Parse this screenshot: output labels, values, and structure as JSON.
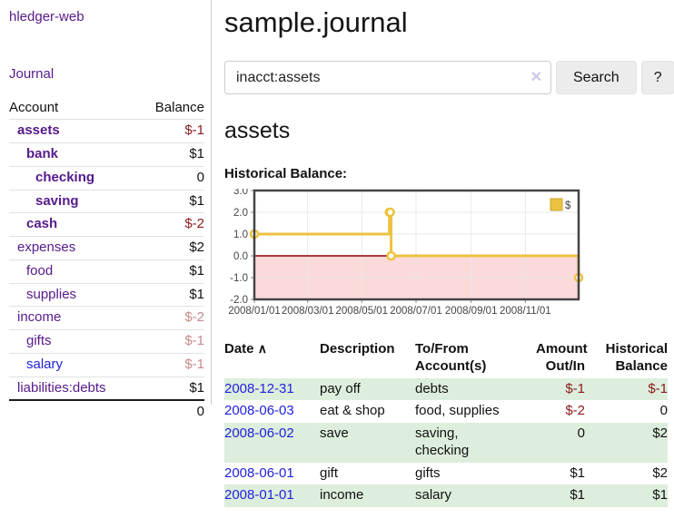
{
  "app": {
    "brand": "hledger-web",
    "nav_journal": "Journal"
  },
  "colors": {
    "link_purple": "#551a8b",
    "link_blue": "#2222dd",
    "negative_strong": "#8b1a1a",
    "negative_muted": "#c98b8b",
    "row_green": "#ddeedd",
    "chart_line": "#edc240",
    "chart_negative_bg": "#fcdada",
    "chart_zero_line": "#8b0000",
    "chart_grid": "#e8e8e8",
    "chart_border": "#454545"
  },
  "sidebar": {
    "accounts_header": {
      "account": "Account",
      "balance": "Balance"
    },
    "accounts": [
      {
        "name": "assets",
        "depth": 1,
        "bold": true,
        "balance": "$-1",
        "negative": true
      },
      {
        "name": "bank",
        "depth": 2,
        "bold": true,
        "balance": "$1"
      },
      {
        "name": "checking",
        "depth": 3,
        "bold": true,
        "balance": "0"
      },
      {
        "name": "saving",
        "depth": 3,
        "bold": true,
        "balance": "$1"
      },
      {
        "name": "cash",
        "depth": 2,
        "bold": true,
        "balance": "$-2",
        "negative": true
      },
      {
        "name": "expenses",
        "depth": 1,
        "bold": false,
        "balance": "$2"
      },
      {
        "name": "food",
        "depth": 2,
        "bold": false,
        "balance": "$1"
      },
      {
        "name": "supplies",
        "depth": 2,
        "bold": false,
        "balance": "$1"
      },
      {
        "name": "income",
        "depth": 1,
        "bold": false,
        "balance": "$-2",
        "muted": true
      },
      {
        "name": "gifts",
        "depth": 2,
        "bold": false,
        "balance": "$-1",
        "muted": true
      },
      {
        "name": "salary",
        "depth": 2,
        "bold": false,
        "balance": "$-1",
        "muted": true,
        "blue": true
      },
      {
        "name": "liabilities:debts",
        "depth": 1,
        "bold": false,
        "balance": "$1"
      }
    ],
    "total": "0"
  },
  "header": {
    "title": "sample.journal"
  },
  "search": {
    "query": "inacct:assets",
    "clear_icon": "✕",
    "button": "Search",
    "help_button": "?"
  },
  "account_page": {
    "title": "assets",
    "chart_label": "Historical Balance:"
  },
  "chart_data": {
    "type": "line",
    "step": true,
    "title": "Historical Balance:",
    "series": [
      {
        "name": "$",
        "points": [
          [
            "2008-01-01",
            1
          ],
          [
            "2008-06-01",
            2
          ],
          [
            "2008-06-02",
            2
          ],
          [
            "2008-06-03",
            0
          ],
          [
            "2008-12-31",
            -1
          ]
        ]
      }
    ],
    "x_range": [
      "2008-01-01",
      "2008-12-31"
    ],
    "ylim": [
      -2,
      3
    ],
    "yticks": [
      3.0,
      2.0,
      1.0,
      0.0,
      -1.0,
      -2.0
    ],
    "xticks": [
      {
        "date": "2008-01-01",
        "label": "2008/01/01"
      },
      {
        "date": "2008-03-01",
        "label": "2008/03/01"
      },
      {
        "date": "2008-05-01",
        "label": "2008/05/01"
      },
      {
        "date": "2008-07-01",
        "label": "2008/07/01"
      },
      {
        "date": "2008-09-01",
        "label": "2008/09/01"
      },
      {
        "date": "2008-11-01",
        "label": "2008/11/01"
      }
    ],
    "legend": {
      "label": "$",
      "position": "top-right"
    },
    "grid": true,
    "negative_region_shaded": true
  },
  "register": {
    "sort_icon": "∧",
    "columns": [
      {
        "label": "Date"
      },
      {
        "label": "Description"
      },
      {
        "label": "To/From Account(s)"
      },
      {
        "label": "Amount Out/In"
      },
      {
        "label": "Historical Balance"
      }
    ],
    "rows": [
      {
        "date": "2008-12-31",
        "description": "pay off",
        "accounts": "debts",
        "amount": "$-1",
        "balance": "$-1"
      },
      {
        "date": "2008-06-03",
        "description": "eat & shop",
        "accounts": "food, supplies",
        "amount": "$-2",
        "balance": "0"
      },
      {
        "date": "2008-06-02",
        "description": "save",
        "accounts": "saving, checking",
        "amount": "0",
        "balance": "$2"
      },
      {
        "date": "2008-06-01",
        "description": "gift",
        "accounts": "gifts",
        "amount": "$1",
        "balance": "$2"
      },
      {
        "date": "2008-01-01",
        "description": "income",
        "accounts": "salary",
        "amount": "$1",
        "balance": "$1"
      }
    ]
  }
}
